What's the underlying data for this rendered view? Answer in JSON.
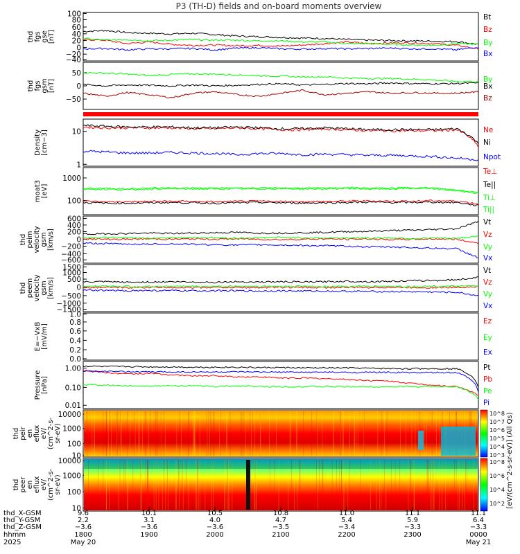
{
  "title": "P3 (TH-D) fields and on-board moments overview",
  "colors": {
    "black": "#000000",
    "red": "#ff0000",
    "green": "#00ff00",
    "blue": "#0000ff",
    "darkred": "#a00000"
  },
  "chart_data": [
    {
      "type": "line",
      "panel": "fgs_gse",
      "ylabel": [
        "thd",
        "fgs",
        "gse",
        "[nT]"
      ],
      "yticks": [
        "100",
        "80",
        "60",
        "40",
        "20",
        "0",
        "−20",
        "−40"
      ],
      "ylim": [
        -40,
        100
      ],
      "series": [
        {
          "name": "Bt",
          "color": "#000000",
          "values": [
            45,
            48,
            42,
            40,
            38,
            40,
            36,
            32,
            30,
            28,
            26,
            25,
            22,
            20,
            19,
            18,
            17,
            16,
            8
          ]
        },
        {
          "name": "Bz",
          "color": "#ff0000",
          "values": [
            22,
            20,
            10,
            15,
            8,
            5,
            6,
            4,
            5,
            3,
            6,
            10,
            15,
            10,
            12,
            12,
            10,
            5,
            -5
          ]
        },
        {
          "name": "By",
          "color": "#00ff00",
          "values": [
            25,
            20,
            22,
            18,
            20,
            22,
            20,
            20,
            18,
            18,
            15,
            15,
            10,
            10,
            8,
            6,
            5,
            10,
            8
          ]
        },
        {
          "name": "Bx",
          "color": "#0000ff",
          "values": [
            -5,
            -4,
            -8,
            -5,
            -5,
            -4,
            -8,
            -3,
            -2,
            -5,
            -6,
            -4,
            -5,
            -4,
            -3,
            -5,
            -5,
            -8,
            0
          ]
        }
      ]
    },
    {
      "type": "line",
      "panel": "fgs_gsm",
      "ylabel": [
        "thd",
        "fgs",
        "gsm",
        "[nT]"
      ],
      "yticks": [
        "50",
        "0",
        "−50"
      ],
      "ylim": [
        -85,
        75
      ],
      "series": [
        {
          "name": "By",
          "color": "#00ff00",
          "values": [
            40,
            38,
            35,
            30,
            34,
            36,
            35,
            32,
            30,
            28,
            25,
            26,
            22,
            20,
            20,
            18,
            15,
            10,
            10
          ]
        },
        {
          "name": "Bx",
          "color": "#000000",
          "values": [
            0,
            -5,
            -2,
            -3,
            -5,
            -2,
            -5,
            -3,
            0,
            2,
            -2,
            0,
            3,
            2,
            5,
            3,
            2,
            3,
            5
          ]
        },
        {
          "name": "Bz",
          "color": "#a00000",
          "values": [
            -30,
            -40,
            -28,
            -35,
            -45,
            -30,
            -25,
            -35,
            -40,
            -30,
            -20,
            -35,
            -30,
            -25,
            -30,
            -28,
            -30,
            -30,
            -25
          ]
        }
      ]
    },
    {
      "type": "line",
      "panel": "density",
      "ylabel": [
        "Density",
        "[cm−3]"
      ],
      "yticks": [
        "10",
        "1"
      ],
      "yscale": "log",
      "ylim": [
        1,
        30
      ],
      "series": [
        {
          "name": "Ne",
          "color": "#ff0000",
          "values": [
            17,
            16,
            16,
            16,
            16,
            15,
            15,
            16,
            15,
            14,
            14,
            15,
            14,
            13,
            13,
            13,
            13,
            14,
            4
          ]
        },
        {
          "name": "Ni",
          "color": "#000000",
          "values": [
            19,
            18,
            17,
            17,
            17,
            16,
            16,
            17,
            16,
            15,
            15,
            16,
            15,
            14,
            14,
            14,
            14,
            15,
            5
          ]
        },
        {
          "name": "Npot",
          "color": "#0000ff",
          "values": [
            3,
            2.8,
            2.6,
            2.6,
            2.7,
            2.6,
            2.5,
            2.3,
            2.5,
            2.5,
            2.3,
            2.4,
            2.3,
            2.2,
            2.2,
            2.1,
            2,
            1.8,
            1.6
          ]
        }
      ]
    },
    {
      "type": "line",
      "panel": "temperature",
      "ylabel": [
        "moat3",
        "[eV]"
      ],
      "yticks": [
        "1000",
        "100"
      ],
      "yscale": "log",
      "ylim": [
        20,
        2500
      ],
      "series": [
        {
          "name": "Te⊥",
          "color": "#ff0000",
          "values": [
            80,
            75,
            75,
            78,
            80,
            78,
            75,
            78,
            80,
            78,
            76,
            78,
            80,
            82,
            80,
            80,
            85,
            80,
            60
          ]
        },
        {
          "name": "Te||",
          "color": "#000000",
          "values": [
            70,
            65,
            65,
            68,
            70,
            68,
            65,
            68,
            70,
            68,
            66,
            68,
            70,
            72,
            70,
            70,
            72,
            70,
            50
          ]
        },
        {
          "name": "Ti⊥",
          "color": "#00ff00",
          "values": [
            300,
            300,
            280,
            300,
            310,
            300,
            300,
            310,
            300,
            310,
            300,
            300,
            320,
            300,
            300,
            320,
            300,
            250,
            200
          ]
        },
        {
          "name": "Ti||",
          "color": "#00ff00",
          "values": [
            280,
            270,
            260,
            280,
            290,
            280,
            280,
            290,
            280,
            290,
            280,
            280,
            300,
            280,
            280,
            300,
            280,
            230,
            180
          ]
        }
      ]
    },
    {
      "type": "line",
      "panel": "ion_velocity",
      "ylabel": [
        "thd",
        "peim",
        "velocity",
        "gsm",
        "[km/s]"
      ],
      "yticks": [
        "600",
        "400",
        "200",
        "0",
        "−200",
        "−400",
        "−600"
      ],
      "ylim": [
        -650,
        650
      ],
      "series": [
        {
          "name": "Vt",
          "color": "#000000",
          "values": [
            150,
            160,
            170,
            180,
            170,
            180,
            190,
            200,
            180,
            180,
            190,
            200,
            220,
            230,
            250,
            260,
            280,
            300,
            500
          ]
        },
        {
          "name": "Vz",
          "color": "#ff0000",
          "values": [
            20,
            10,
            10,
            20,
            10,
            20,
            10,
            20,
            10,
            0,
            10,
            20,
            10,
            20,
            0,
            10,
            20,
            10,
            -100
          ]
        },
        {
          "name": "Vy",
          "color": "#00ff00",
          "values": [
            50,
            60,
            50,
            40,
            50,
            60,
            50,
            40,
            50,
            60,
            50,
            40,
            50,
            40,
            50,
            30,
            40,
            30,
            100
          ]
        },
        {
          "name": "Vx",
          "color": "#0000ff",
          "values": [
            -100,
            -110,
            -120,
            -130,
            -120,
            -130,
            -140,
            -150,
            -140,
            -150,
            -160,
            -170,
            -180,
            -200,
            -200,
            -220,
            -240,
            -250,
            -500
          ]
        }
      ]
    },
    {
      "type": "line",
      "panel": "electron_velocity",
      "ylabel": [
        "thd",
        "peem",
        "velocity",
        "gsm",
        "[km/s]"
      ],
      "yticks": [
        "1500",
        "1000",
        "500",
        "0",
        "−500",
        "−1000",
        "−1500"
      ],
      "ylim": [
        -1550,
        1550
      ],
      "series": [
        {
          "name": "Vt",
          "color": "#000000",
          "values": [
            400,
            420,
            380,
            400,
            420,
            400,
            380,
            420,
            400,
            420,
            400,
            420,
            450,
            420,
            450,
            480,
            500,
            550,
            700
          ]
        },
        {
          "name": "Vz",
          "color": "#ff0000",
          "values": [
            50,
            40,
            30,
            50,
            40,
            30,
            50,
            40,
            30,
            50,
            40,
            30,
            50,
            40,
            50,
            40,
            30,
            50,
            100
          ]
        },
        {
          "name": "Vy",
          "color": "#00ff00",
          "values": [
            100,
            120,
            110,
            100,
            120,
            110,
            100,
            120,
            110,
            100,
            120,
            110,
            100,
            120,
            110,
            100,
            120,
            110,
            150
          ]
        },
        {
          "name": "Vx",
          "color": "#0000ff",
          "values": [
            -150,
            -160,
            -170,
            -160,
            -170,
            -180,
            -170,
            -180,
            -190,
            -180,
            -190,
            -200,
            -210,
            -220,
            -230,
            -240,
            -260,
            -280,
            -500
          ]
        }
      ]
    },
    {
      "type": "line",
      "panel": "efield",
      "ylabel": [
        "E=−VxB",
        "[mV/m]"
      ],
      "yticks": [
        "1.0",
        "0.8",
        "0.6",
        "0.4",
        "0.2",
        "0.0"
      ],
      "ylim": [
        0,
        1
      ],
      "series": [
        {
          "name": "Ez",
          "color": "#ff0000",
          "values": []
        },
        {
          "name": "Ey",
          "color": "#00ff00",
          "values": []
        },
        {
          "name": "Ex",
          "color": "#0000ff",
          "values": []
        }
      ]
    },
    {
      "type": "line",
      "panel": "pressure",
      "ylabel": [
        "Pressure",
        "[nPa]"
      ],
      "yticks": [
        "1.00",
        "0.10",
        "0.01"
      ],
      "yscale": "log",
      "ylim": [
        0.006,
        2.5
      ],
      "series": [
        {
          "name": "Pt",
          "color": "#000000",
          "values": [
            1.4,
            1.3,
            1.3,
            1.25,
            1.25,
            1.2,
            1.2,
            1.2,
            1.15,
            1.15,
            1.1,
            1.1,
            1.1,
            1.05,
            1.0,
            1.0,
            1.0,
            1.0,
            0.1
          ]
        },
        {
          "name": "Pb",
          "color": "#ff0000",
          "values": [
            0.8,
            0.6,
            0.5,
            0.55,
            0.45,
            0.4,
            0.4,
            0.35,
            0.35,
            0.3,
            0.3,
            0.28,
            0.25,
            0.22,
            0.2,
            0.15,
            0.12,
            0.1,
            0.03
          ]
        },
        {
          "name": "Pe",
          "color": "#00ff00",
          "values": [
            0.13,
            0.12,
            0.11,
            0.11,
            0.11,
            0.11,
            0.1,
            0.11,
            0.1,
            0.1,
            0.1,
            0.1,
            0.1,
            0.1,
            0.1,
            0.1,
            0.1,
            0.1,
            0.02
          ]
        },
        {
          "name": "Pi",
          "color": "#0000ff",
          "values": [
            0.7,
            0.7,
            0.68,
            0.66,
            0.66,
            0.65,
            0.65,
            0.66,
            0.64,
            0.64,
            0.63,
            0.63,
            0.62,
            0.62,
            0.62,
            0.6,
            0.6,
            0.6,
            0.05
          ]
        }
      ]
    },
    {
      "type": "heatmap",
      "panel": "ion_spectrogram",
      "ylabel": [
        "thd",
        "peir",
        "en",
        "eflux",
        "eV/",
        "(cm^2-s-",
        "sr-eV)"
      ],
      "yticks": [
        "10000",
        "1000",
        "100",
        "10"
      ],
      "yscale": "log",
      "ylim": [
        6,
        25000
      ]
    },
    {
      "type": "heatmap",
      "panel": "electron_spectrogram",
      "ylabel": [
        "thd",
        "peer",
        "en",
        "eflux",
        "eV/",
        "(cm^2-s-",
        "sr-eV)"
      ],
      "yticks": [
        "10000",
        "1000",
        "100",
        "10"
      ],
      "yscale": "log",
      "ylim": [
        6,
        25000
      ]
    }
  ],
  "colorbar": {
    "ticks": [
      "10^8",
      "10^7",
      "10^6",
      "10^5",
      "10^4",
      "10^3",
      "10^8",
      "10^6",
      "10^4",
      "10^2"
    ],
    "label": "[eV/(cm^2-s-sr-eV)] (All Qs)"
  },
  "xaxis": {
    "rows": [
      {
        "label": "thd_X-GSM",
        "values": [
          "9.6",
          "10.1",
          "10.5",
          "10.8",
          "11.0",
          "11.1",
          "11.1"
        ]
      },
      {
        "label": "thd_Y-GSM",
        "values": [
          "2.2",
          "3.1",
          "4.0",
          "4.7",
          "5.4",
          "5.9",
          "6.4"
        ]
      },
      {
        "label": "thd_Z-GSM",
        "values": [
          "−3.6",
          "−3.6",
          "−3.6",
          "−3.5",
          "−3.4",
          "−3.3",
          "−3.3"
        ]
      },
      {
        "label": "hhmm",
        "values": [
          "1800",
          "1900",
          "2000",
          "2100",
          "2200",
          "2300",
          "0000"
        ]
      }
    ],
    "year": "2025",
    "start_date": "May 20",
    "end_date": "May 21"
  }
}
